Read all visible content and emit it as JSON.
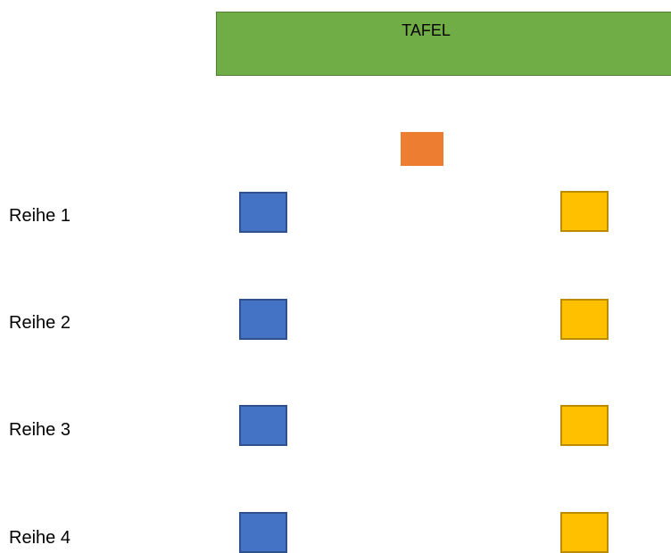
{
  "board": {
    "label": "TAFEL"
  },
  "rows": [
    {
      "label": "Reihe 1"
    },
    {
      "label": "Reihe 2"
    },
    {
      "label": "Reihe 3"
    },
    {
      "label": "Reihe 4"
    }
  ],
  "colors": {
    "board_fill": "#70ad47",
    "board_border": "#507e32",
    "teacher_desk": "#ed7d31",
    "seat_left_fill": "#4472c4",
    "seat_left_border": "#2f528f",
    "seat_right_fill": "#ffc000",
    "seat_right_border": "#bc8c00"
  }
}
